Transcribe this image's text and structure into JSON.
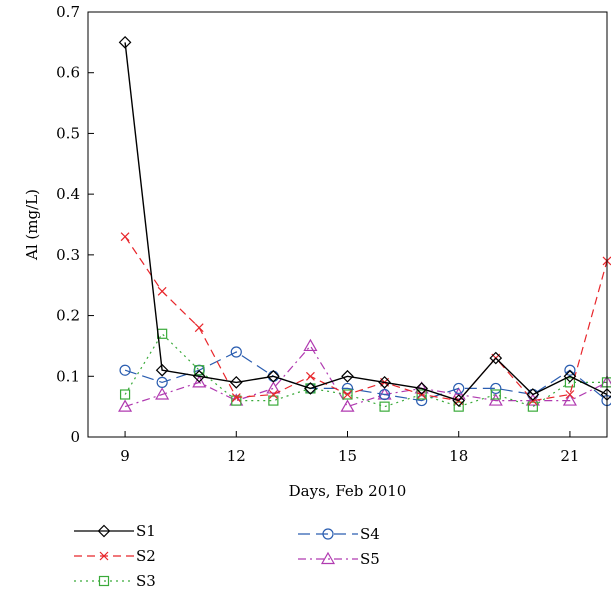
{
  "chart_data": {
    "type": "line",
    "title": "",
    "xlabel": "Days, Feb 2010",
    "ylabel": "Al (mg/L)",
    "xlim": [
      8,
      22
    ],
    "ylim": [
      0,
      0.7
    ],
    "xticks": [
      9,
      12,
      15,
      18,
      21
    ],
    "yticks": [
      0,
      0.1,
      0.2,
      0.3,
      0.4,
      0.5,
      0.6,
      0.7
    ],
    "ytick_labels": [
      "0",
      "0.1",
      "0.2",
      "0.3",
      "0.4",
      "0.5",
      "0.6",
      "0.7"
    ],
    "grid": false,
    "legend_position": "bottom",
    "series": [
      {
        "name": "S1",
        "color": "#000000",
        "dash": "solid",
        "marker": "diamond",
        "x": [
          9,
          10,
          11,
          12,
          13,
          14,
          15,
          16,
          17,
          18,
          19,
          20,
          21,
          22
        ],
        "y": [
          0.65,
          0.11,
          0.1,
          0.09,
          0.1,
          0.08,
          0.1,
          0.09,
          0.08,
          0.06,
          0.13,
          0.07,
          0.1,
          0.07
        ]
      },
      {
        "name": "S2",
        "color": "#e8262b",
        "dash": "dashed",
        "marker": "x",
        "x": [
          9,
          10,
          11,
          12,
          13,
          14,
          15,
          16,
          17,
          18,
          19,
          20,
          21,
          22
        ],
        "y": [
          0.33,
          0.24,
          0.18,
          0.065,
          0.07,
          0.1,
          0.07,
          0.09,
          0.07,
          0.06,
          0.13,
          0.06,
          0.07,
          0.29
        ]
      },
      {
        "name": "S3",
        "color": "#3aaa3a",
        "dash": "dotted",
        "marker": "square",
        "x": [
          9,
          10,
          11,
          12,
          13,
          14,
          15,
          16,
          17,
          18,
          19,
          20,
          21,
          22
        ],
        "y": [
          0.07,
          0.17,
          0.11,
          0.06,
          0.06,
          0.08,
          0.07,
          0.05,
          0.07,
          0.05,
          0.07,
          0.05,
          0.09,
          0.09
        ]
      },
      {
        "name": "S4",
        "color": "#2a5db0",
        "dash": "longdash",
        "marker": "circle",
        "x": [
          9,
          10,
          11,
          12,
          13,
          14,
          15,
          16,
          17,
          18,
          19,
          20,
          21,
          22
        ],
        "y": [
          0.11,
          0.09,
          0.11,
          0.14,
          0.1,
          0.08,
          0.08,
          0.07,
          0.06,
          0.08,
          0.08,
          0.07,
          0.11,
          0.06
        ]
      },
      {
        "name": "S5",
        "color": "#b03ab0",
        "dash": "dashdot",
        "marker": "triangle",
        "x": [
          9,
          10,
          11,
          12,
          13,
          14,
          15,
          16,
          17,
          18,
          19,
          20,
          21,
          22
        ],
        "y": [
          0.05,
          0.07,
          0.09,
          0.06,
          0.08,
          0.15,
          0.05,
          0.07,
          0.08,
          0.07,
          0.06,
          0.06,
          0.06,
          0.09
        ]
      }
    ]
  }
}
